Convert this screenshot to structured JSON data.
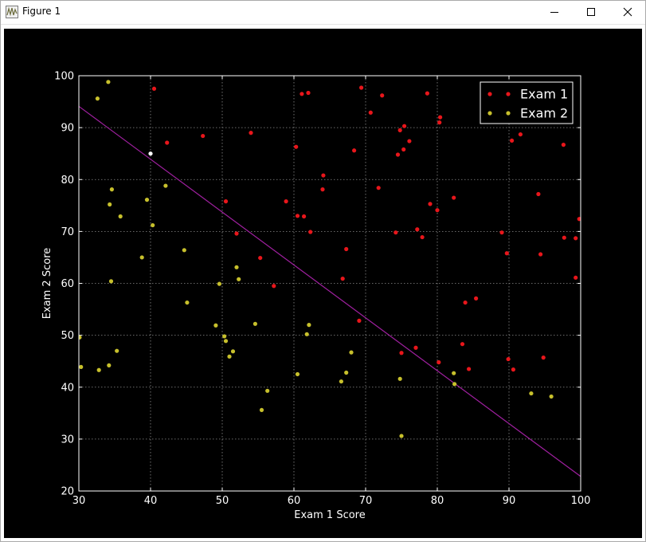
{
  "window": {
    "title": "Figure 1",
    "icon": "matplotlib-figure-icon",
    "controls": [
      "minimize-icon",
      "maximize-icon",
      "close-icon"
    ]
  },
  "colors": {
    "background": "#000000",
    "axes_fg": "#ffffff",
    "exam1": "#e8161b",
    "exam2": "#c7c02c",
    "boundary": "#a020a0",
    "highlight": "#ffffff"
  },
  "chart_data": {
    "type": "scatter",
    "title": "",
    "xlabel": "Exam 1 Score",
    "ylabel": "Exam 2 Score",
    "xlim": [
      30,
      100
    ],
    "ylim": [
      20,
      100
    ],
    "xticks": [
      30,
      40,
      50,
      60,
      70,
      80,
      90,
      100
    ],
    "yticks": [
      20,
      30,
      40,
      50,
      60,
      70,
      80,
      90,
      100
    ],
    "grid": true,
    "legend_position": "upper-right",
    "series": [
      {
        "name": "Exam 1",
        "color": "#e8161b",
        "points": [
          [
            40.5,
            97.5
          ],
          [
            42.3,
            87.1
          ],
          [
            47.3,
            88.4
          ],
          [
            50.5,
            75.8
          ],
          [
            52.0,
            69.6
          ],
          [
            54.0,
            89.0
          ],
          [
            55.3,
            64.9
          ],
          [
            57.2,
            59.5
          ],
          [
            58.9,
            75.8
          ],
          [
            60.3,
            86.3
          ],
          [
            60.5,
            73.0
          ],
          [
            61.1,
            96.5
          ],
          [
            61.4,
            72.9
          ],
          [
            62.0,
            96.7
          ],
          [
            62.3,
            69.9
          ],
          [
            64.0,
            78.1
          ],
          [
            64.1,
            80.8
          ],
          [
            66.8,
            60.9
          ],
          [
            67.3,
            66.6
          ],
          [
            68.4,
            85.6
          ],
          [
            69.1,
            52.8
          ],
          [
            69.4,
            97.7
          ],
          [
            70.7,
            92.9
          ],
          [
            71.8,
            78.4
          ],
          [
            72.3,
            96.2
          ],
          [
            74.2,
            69.8
          ],
          [
            74.5,
            84.8
          ],
          [
            74.8,
            89.5
          ],
          [
            75.0,
            46.6
          ],
          [
            75.3,
            85.8
          ],
          [
            75.4,
            90.3
          ],
          [
            76.1,
            87.4
          ],
          [
            77.0,
            47.6
          ],
          [
            77.2,
            70.4
          ],
          [
            77.9,
            68.9
          ],
          [
            78.6,
            96.6
          ],
          [
            79.0,
            75.3
          ],
          [
            80.0,
            74.1
          ],
          [
            80.2,
            44.8
          ],
          [
            80.3,
            91.0
          ],
          [
            80.4,
            92.0
          ],
          [
            82.3,
            76.5
          ],
          [
            83.5,
            48.3
          ],
          [
            83.9,
            56.3
          ],
          [
            84.4,
            43.5
          ],
          [
            85.4,
            57.1
          ],
          [
            89.0,
            69.8
          ],
          [
            89.7,
            65.8
          ],
          [
            89.9,
            45.4
          ],
          [
            90.4,
            87.5
          ],
          [
            90.6,
            43.4
          ],
          [
            91.6,
            88.7
          ],
          [
            94.1,
            77.2
          ],
          [
            94.4,
            65.6
          ],
          [
            94.8,
            45.7
          ],
          [
            97.6,
            86.7
          ],
          [
            97.7,
            68.8
          ],
          [
            99.3,
            68.7
          ],
          [
            99.3,
            61.1
          ],
          [
            99.8,
            72.4
          ]
        ]
      },
      {
        "name": "Exam 2",
        "color": "#c7c02c",
        "points": [
          [
            30.1,
            49.6
          ],
          [
            30.3,
            43.9
          ],
          [
            32.6,
            95.6
          ],
          [
            32.8,
            43.3
          ],
          [
            34.1,
            98.8
          ],
          [
            34.2,
            44.2
          ],
          [
            34.3,
            75.2
          ],
          [
            34.5,
            60.4
          ],
          [
            34.6,
            78.1
          ],
          [
            35.3,
            47.0
          ],
          [
            35.8,
            72.9
          ],
          [
            38.8,
            65.0
          ],
          [
            39.5,
            76.1
          ],
          [
            40.3,
            71.2
          ],
          [
            42.1,
            78.8
          ],
          [
            44.7,
            66.4
          ],
          [
            45.1,
            56.3
          ],
          [
            49.1,
            51.9
          ],
          [
            49.6,
            59.9
          ],
          [
            50.3,
            49.8
          ],
          [
            50.5,
            48.9
          ],
          [
            51.0,
            45.9
          ],
          [
            51.5,
            46.9
          ],
          [
            52.0,
            63.1
          ],
          [
            52.3,
            60.8
          ],
          [
            54.6,
            52.2
          ],
          [
            55.5,
            35.6
          ],
          [
            56.3,
            39.3
          ],
          [
            60.5,
            42.5
          ],
          [
            61.8,
            50.2
          ],
          [
            62.1,
            52.0
          ],
          [
            66.6,
            41.1
          ],
          [
            67.3,
            42.8
          ],
          [
            68.0,
            46.7
          ],
          [
            74.8,
            41.6
          ],
          [
            75.0,
            30.6
          ],
          [
            82.3,
            42.7
          ],
          [
            82.4,
            40.6
          ],
          [
            93.1,
            38.8
          ],
          [
            95.9,
            38.2
          ]
        ]
      }
    ],
    "highlight_points": [
      [
        40.0,
        85.0
      ]
    ],
    "decision_boundary": [
      [
        30,
        94.1
      ],
      [
        100,
        22.8
      ]
    ]
  }
}
